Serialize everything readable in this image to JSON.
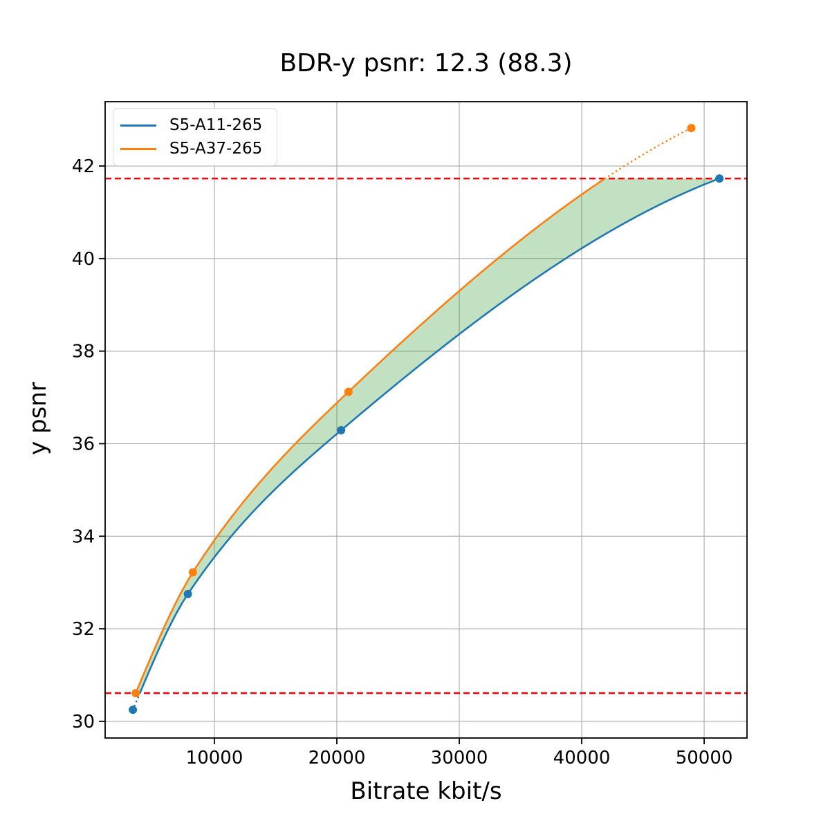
{
  "title": "BDR-y psnr: 12.3 (88.3)",
  "chart_data": {
    "type": "line",
    "title": "BDR-y psnr: 12.3 (88.3)",
    "xlabel": "Bitrate kbit/s",
    "ylabel": "y psnr",
    "xlim": [
      1073,
      53500
    ],
    "ylim": [
      29.64,
      43.39
    ],
    "x_ticks": [
      10000,
      20000,
      30000,
      40000,
      50000
    ],
    "y_ticks": [
      30,
      32,
      34,
      36,
      38,
      40,
      42
    ],
    "grid": true,
    "grid_color": "#b0b0b0",
    "legend_position": "upper-left",
    "series": [
      {
        "name": "S5-A11-265",
        "color": "#1f77b4",
        "points": [
          [
            3340,
            30.25
          ],
          [
            7830,
            32.75
          ],
          [
            20350,
            36.29
          ],
          [
            51250,
            41.73
          ]
        ]
      },
      {
        "name": "S5-A37-265",
        "color": "#ff7f0e",
        "points": [
          [
            3570,
            30.61
          ],
          [
            8240,
            33.22
          ],
          [
            20950,
            37.12
          ],
          [
            48950,
            42.82
          ]
        ]
      }
    ],
    "overlap_psnr_range": [
      30.61,
      41.73
    ],
    "hlines": [
      {
        "y": 41.73,
        "color": "#ff0000",
        "style": "dashed"
      },
      {
        "y": 30.61,
        "color": "#ff0000",
        "style": "dashed"
      }
    ],
    "fill_between": {
      "color": "#008000",
      "opacity": 0.24
    },
    "style_note": "curves solid inside overlap psnr range, dotted outside"
  }
}
